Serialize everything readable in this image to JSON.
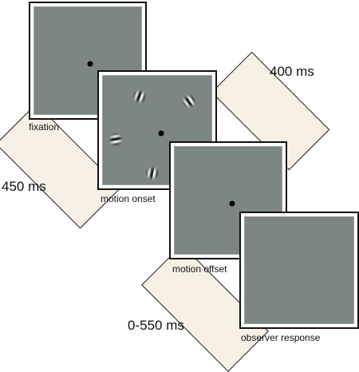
{
  "frames": [
    {
      "label": "fixation"
    },
    {
      "label": "motion onset"
    },
    {
      "label": "motion offset"
    },
    {
      "label": "observer response"
    }
  ],
  "durations": [
    "400 ms",
    "450 ms",
    "0-550 ms"
  ],
  "colors": {
    "screen": "#7e8585",
    "band": "#f6f1e4",
    "border": "#111111"
  }
}
